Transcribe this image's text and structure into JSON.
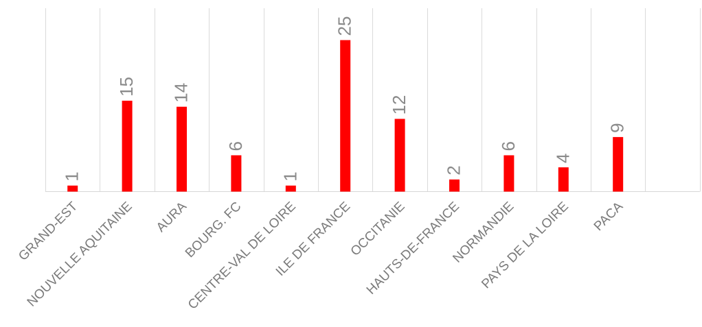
{
  "chart_data": {
    "type": "bar",
    "categories": [
      "GRAND-EST",
      "NOUVELLE AQUITAINE",
      "AURA",
      "BOURG. FC",
      "CENTRE-VAL DE LOIRE",
      "ILE DE FRANCE",
      "OCCITANIE",
      "HAUTS-DE-FRANCE",
      "NORMANDIE",
      "PAYS DE LA LOIRE",
      "PACA"
    ],
    "values": [
      1,
      15,
      14,
      6,
      1,
      25,
      12,
      2,
      6,
      4,
      9
    ],
    "data_labels": [
      "1",
      "15",
      "14",
      "6",
      "1",
      "25",
      "12",
      "2",
      "6",
      "4",
      "9"
    ],
    "ylim": [
      0,
      30
    ],
    "grid": true,
    "legend": "none",
    "colors": {
      "bar": "#ff0000",
      "grid": "#dadada",
      "label": "#8a8a8a",
      "tick": "#7a7a7a"
    }
  }
}
